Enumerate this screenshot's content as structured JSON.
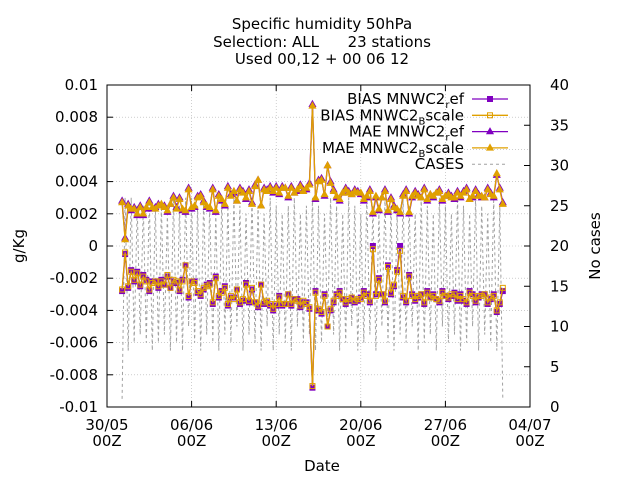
{
  "chart_data": {
    "type": "line",
    "title_lines": [
      "Specific humidity 50hPa",
      "Selection: ALL      23 stations",
      "Used 00,12 + 00 06 12"
    ],
    "xlabel": "Date",
    "ylabel": "g/Kg",
    "y2label": "No cases",
    "xlim": [
      "2022-05-30T00:00",
      "2022-07-04T00:00"
    ],
    "ylim": [
      -0.01,
      0.01
    ],
    "y2lim": [
      0,
      40
    ],
    "x_ticks": [
      {
        "date": "2022-05-30T00:00",
        "l1": "30/05",
        "l2": "00Z"
      },
      {
        "date": "2022-06-06T00:00",
        "l1": "06/06",
        "l2": "00Z"
      },
      {
        "date": "2022-06-13T00:00",
        "l1": "13/06",
        "l2": "00Z"
      },
      {
        "date": "2022-06-20T00:00",
        "l1": "20/06",
        "l2": "00Z"
      },
      {
        "date": "2022-06-27T00:00",
        "l1": "27/06",
        "l2": "00Z"
      },
      {
        "date": "2022-07-04T00:00",
        "l1": "04/07",
        "l2": "00Z"
      }
    ],
    "y_ticks": [
      {
        "v": 0.01,
        "label": "0.01"
      },
      {
        "v": 0.008,
        "label": "0.008"
      },
      {
        "v": 0.006,
        "label": "0.006"
      },
      {
        "v": 0.004,
        "label": "0.004"
      },
      {
        "v": 0.002,
        "label": "0.002"
      },
      {
        "v": 0,
        "label": "0"
      },
      {
        "v": -0.002,
        "label": "-0.002"
      },
      {
        "v": -0.004,
        "label": "-0.004"
      },
      {
        "v": -0.006,
        "label": "-0.006"
      },
      {
        "v": -0.008,
        "label": "-0.008"
      },
      {
        "v": -0.01,
        "label": "-0.01"
      }
    ],
    "y2_ticks": [
      {
        "v": 40,
        "label": "40"
      },
      {
        "v": 35,
        "label": "35"
      },
      {
        "v": 30,
        "label": "30"
      },
      {
        "v": 25,
        "label": "25"
      },
      {
        "v": 20,
        "label": "20"
      },
      {
        "v": 15,
        "label": "15"
      },
      {
        "v": 10,
        "label": "10"
      },
      {
        "v": 5,
        "label": "5"
      },
      {
        "v": 0,
        "label": "0"
      }
    ],
    "grid": true,
    "legend_position": "top-right",
    "legend": [
      {
        "main": "BIAS MNWC2",
        "sub": "r",
        "rest": "ef"
      },
      {
        "main": "BIAS MNWC2",
        "sub": "B",
        "rest": "scale"
      },
      {
        "main": "MAE MNWC2",
        "sub": "r",
        "rest": "ef"
      },
      {
        "main": "MAE MNWC2",
        "sub": "B",
        "rest": "scale"
      },
      {
        "main": "CASES",
        "sub": "",
        "rest": ""
      }
    ],
    "colors": {
      "ref": "#8000c0",
      "bscale": "#e0a000",
      "cases": "#a0a0a0",
      "grid": "#b0b0b0"
    },
    "sampling": "6-hourly from 2022-05-31T06:00 to 2022-07-01T18:00 (127 points)",
    "series": [
      {
        "name": "BIAS MNWC2_ref",
        "marker": "square",
        "values": [
          -0.0028,
          -0.0005,
          -0.0026,
          -0.0015,
          -0.0022,
          -0.0016,
          -0.0025,
          -0.0018,
          -0.0021,
          -0.0028,
          -0.0022,
          -0.0022,
          -0.0026,
          -0.0021,
          -0.0024,
          -0.0019,
          -0.0026,
          -0.0022,
          -0.0023,
          -0.0028,
          -0.0021,
          -0.0012,
          -0.0032,
          -0.0022,
          -0.0022,
          -0.0029,
          -0.0031,
          -0.0027,
          -0.0024,
          -0.0023,
          -0.0036,
          -0.0019,
          -0.0032,
          -0.0028,
          -0.0025,
          -0.0037,
          -0.0032,
          -0.0032,
          -0.0027,
          -0.0036,
          -0.0034,
          -0.0023,
          -0.0035,
          -0.0027,
          -0.0035,
          -0.0038,
          -0.0024,
          -0.0036,
          -0.0035,
          -0.0037,
          -0.004,
          -0.0037,
          -0.0031,
          -0.0037,
          -0.0036,
          -0.003,
          -0.0037,
          -0.0033,
          -0.0033,
          -0.0038,
          -0.0035,
          -0.0035,
          -0.0039,
          -0.0088,
          -0.0028,
          -0.004,
          -0.0042,
          -0.003,
          -0.005,
          -0.004,
          -0.0035,
          -0.003,
          -0.0028,
          -0.0033,
          -0.0036,
          -0.0034,
          -0.0032,
          -0.0035,
          -0.0034,
          -0.0032,
          -0.0028,
          -0.003,
          -0.0035,
          0.0,
          -0.003,
          -0.002,
          -0.003,
          -0.0035,
          -0.0012,
          -0.003,
          -0.0025,
          -0.0015,
          0.0,
          -0.0032,
          -0.0035,
          -0.0018,
          -0.003,
          -0.0034,
          -0.0032,
          -0.003,
          -0.0036,
          -0.0028,
          -0.0032,
          -0.003,
          -0.0033,
          -0.0035,
          -0.0028,
          -0.0031,
          -0.0033,
          -0.0031,
          -0.0029,
          -0.0034,
          -0.003,
          -0.0034,
          -0.0036,
          -0.0028,
          -0.003,
          -0.0035,
          -0.0032,
          -0.003,
          -0.003,
          -0.0036,
          -0.0033,
          -0.003,
          -0.0041,
          -0.0036,
          -0.0028
        ]
      },
      {
        "name": "BIAS MNWC2_Bscale",
        "marker": "open-square",
        "values": [
          -0.0027,
          -0.0004,
          -0.0025,
          -0.0016,
          -0.0021,
          -0.0017,
          -0.0024,
          -0.0019,
          -0.0022,
          -0.0027,
          -0.0023,
          -0.0022,
          -0.0025,
          -0.0022,
          -0.0024,
          -0.0018,
          -0.0026,
          -0.0021,
          -0.0022,
          -0.0027,
          -0.0022,
          -0.0012,
          -0.0031,
          -0.0022,
          -0.0023,
          -0.0028,
          -0.003,
          -0.0026,
          -0.0025,
          -0.0024,
          -0.0035,
          -0.002,
          -0.0031,
          -0.0029,
          -0.0026,
          -0.0036,
          -0.0031,
          -0.0033,
          -0.0027,
          -0.0035,
          -0.0033,
          -0.0024,
          -0.0034,
          -0.0026,
          -0.0035,
          -0.0037,
          -0.0024,
          -0.0035,
          -0.0034,
          -0.0036,
          -0.0039,
          -0.0036,
          -0.0032,
          -0.0036,
          -0.0036,
          -0.003,
          -0.0036,
          -0.0033,
          -0.0034,
          -0.0037,
          -0.0034,
          -0.0036,
          -0.0038,
          -0.0087,
          -0.0029,
          -0.0039,
          -0.0041,
          -0.0031,
          -0.005,
          -0.0039,
          -0.0034,
          -0.0031,
          -0.0029,
          -0.0033,
          -0.0035,
          -0.0033,
          -0.0032,
          -0.0034,
          -0.0033,
          -0.0033,
          -0.0029,
          -0.0031,
          -0.0034,
          -0.0002,
          -0.0031,
          -0.0021,
          -0.003,
          -0.0034,
          -0.0013,
          -0.0029,
          -0.0024,
          -0.0016,
          -0.0003,
          -0.0031,
          -0.0034,
          -0.0019,
          -0.0031,
          -0.0033,
          -0.0031,
          -0.003,
          -0.0035,
          -0.0029,
          -0.0032,
          -0.0031,
          -0.0033,
          -0.0034,
          -0.0029,
          -0.0031,
          -0.0032,
          -0.003,
          -0.003,
          -0.0033,
          -0.0031,
          -0.0033,
          -0.0035,
          -0.0029,
          -0.0031,
          -0.0034,
          -0.0031,
          -0.0031,
          -0.003,
          -0.0035,
          -0.0032,
          -0.0031,
          -0.004,
          -0.0035,
          -0.0026
        ]
      },
      {
        "name": "MAE MNWC2_ref",
        "marker": "triangle",
        "values": [
          0.0028,
          0.0005,
          0.0026,
          0.0022,
          0.0024,
          0.0019,
          0.0025,
          0.0019,
          0.0023,
          0.0028,
          0.0023,
          0.0024,
          0.0026,
          0.0025,
          0.0025,
          0.0021,
          0.0026,
          0.0031,
          0.0024,
          0.003,
          0.0022,
          0.0021,
          0.0036,
          0.0023,
          0.0024,
          0.0031,
          0.0032,
          0.0028,
          0.0024,
          0.0023,
          0.0036,
          0.0021,
          0.0032,
          0.0028,
          0.0025,
          0.0037,
          0.0032,
          0.0033,
          0.0028,
          0.0036,
          0.0034,
          0.0029,
          0.0035,
          0.0027,
          0.0038,
          0.0041,
          0.0025,
          0.0036,
          0.0035,
          0.0037,
          0.0033,
          0.0037,
          0.0032,
          0.0037,
          0.0036,
          0.003,
          0.0037,
          0.0033,
          0.0034,
          0.0038,
          0.0035,
          0.0035,
          0.0039,
          0.0088,
          0.0029,
          0.0041,
          0.0042,
          0.0031,
          0.005,
          0.004,
          0.0035,
          0.003,
          0.0028,
          0.0033,
          0.0036,
          0.0034,
          0.0032,
          0.0035,
          0.0034,
          0.0032,
          0.0028,
          0.003,
          0.0035,
          0.002,
          0.003,
          0.0022,
          0.003,
          0.0035,
          0.0021,
          0.003,
          0.0025,
          0.0022,
          0.002,
          0.0032,
          0.0035,
          0.002,
          0.003,
          0.0034,
          0.0032,
          0.003,
          0.0036,
          0.0028,
          0.0032,
          0.003,
          0.0033,
          0.0035,
          0.0028,
          0.0031,
          0.0033,
          0.0031,
          0.0029,
          0.0034,
          0.003,
          0.0034,
          0.0036,
          0.0029,
          0.003,
          0.0035,
          0.0032,
          0.003,
          0.003,
          0.0036,
          0.0033,
          0.003,
          0.0044,
          0.0036,
          0.0027
        ]
      },
      {
        "name": "MAE MNWC2_Bscale",
        "marker": "open-triangle",
        "values": [
          0.0027,
          0.0004,
          0.0025,
          0.0023,
          0.0023,
          0.002,
          0.0024,
          0.002,
          0.0024,
          0.0027,
          0.0024,
          0.0023,
          0.0025,
          0.0026,
          0.0024,
          0.0022,
          0.0026,
          0.003,
          0.0023,
          0.0029,
          0.0023,
          0.0022,
          0.0035,
          0.0024,
          0.0025,
          0.003,
          0.0031,
          0.0027,
          0.0025,
          0.0024,
          0.0035,
          0.0022,
          0.0031,
          0.0029,
          0.0026,
          0.0036,
          0.0031,
          0.0034,
          0.0028,
          0.0035,
          0.0033,
          0.003,
          0.0034,
          0.0026,
          0.0037,
          0.0041,
          0.0025,
          0.0035,
          0.0034,
          0.0036,
          0.0034,
          0.0036,
          0.0033,
          0.0036,
          0.0036,
          0.0031,
          0.0036,
          0.0033,
          0.0035,
          0.0037,
          0.0034,
          0.0036,
          0.0038,
          0.0087,
          0.003,
          0.004,
          0.0041,
          0.0032,
          0.005,
          0.0039,
          0.0034,
          0.0031,
          0.0029,
          0.0033,
          0.0035,
          0.0033,
          0.0032,
          0.0034,
          0.0033,
          0.0033,
          0.0029,
          0.0031,
          0.0034,
          0.0021,
          0.0031,
          0.0023,
          0.003,
          0.0034,
          0.0022,
          0.0029,
          0.0024,
          0.0023,
          0.0021,
          0.0031,
          0.0034,
          0.0021,
          0.0031,
          0.0033,
          0.0031,
          0.003,
          0.0035,
          0.0029,
          0.0032,
          0.0031,
          0.0033,
          0.0034,
          0.0029,
          0.0031,
          0.0032,
          0.003,
          0.003,
          0.0033,
          0.0031,
          0.0033,
          0.0035,
          0.0029,
          0.0031,
          0.0034,
          0.0031,
          0.0031,
          0.003,
          0.0035,
          0.0032,
          0.0031,
          0.0045,
          0.0035,
          0.0026
        ]
      },
      {
        "name": "CASES",
        "marker": "none",
        "values": [
          1,
          26,
          7,
          26,
          8,
          25,
          9,
          25,
          8,
          26,
          7,
          25,
          8,
          25,
          9,
          24,
          7,
          26,
          8,
          25,
          7,
          26,
          10,
          26,
          8,
          25,
          7,
          26,
          9,
          25,
          8,
          24,
          7,
          26,
          9,
          25,
          8,
          26,
          10,
          25,
          7,
          24,
          9,
          26,
          8,
          25,
          7,
          24,
          10,
          26,
          7,
          25,
          9,
          24,
          8,
          25,
          7,
          26,
          10,
          24,
          8,
          25,
          9,
          26,
          7,
          25,
          8,
          24,
          10,
          26,
          9,
          25,
          7,
          24,
          8,
          26,
          10,
          25,
          7,
          24,
          8,
          26,
          9,
          25,
          7,
          24,
          10,
          26,
          8,
          25,
          7,
          24,
          9,
          26,
          8,
          25,
          10,
          24,
          7,
          26,
          8,
          25,
          9,
          24,
          7,
          26,
          10,
          25,
          8,
          24,
          9,
          26,
          7,
          25,
          8,
          24,
          10,
          26,
          7,
          25,
          9,
          24,
          8,
          26,
          7,
          25,
          1
        ]
      }
    ]
  }
}
